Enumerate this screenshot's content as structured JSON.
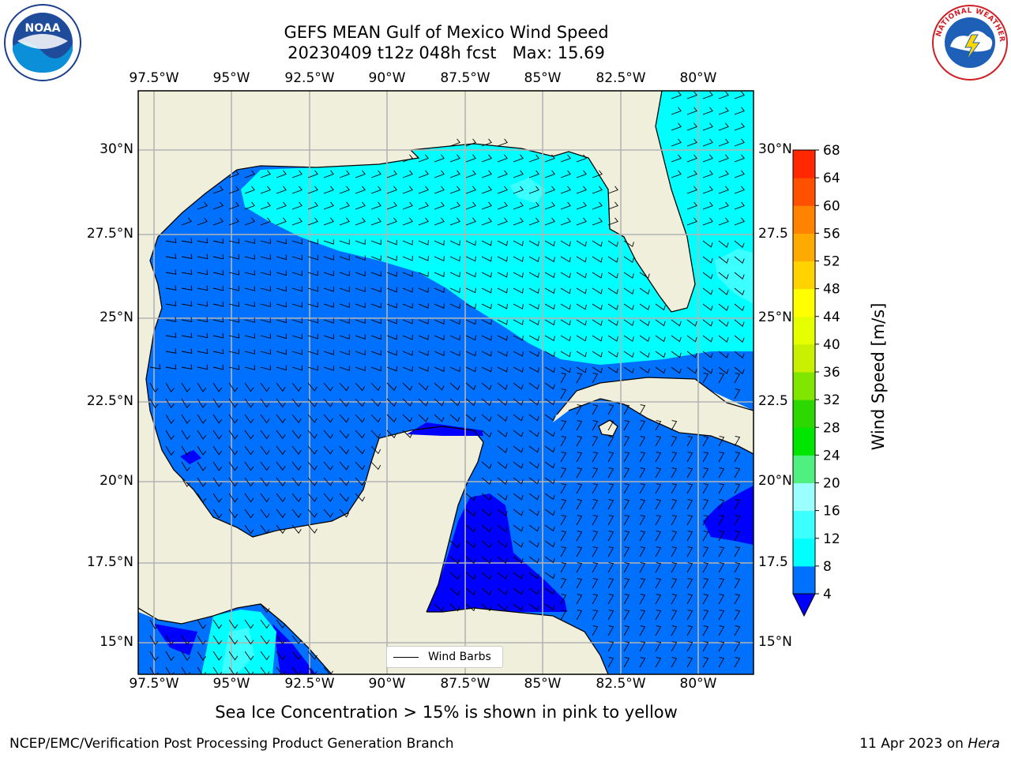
{
  "title": {
    "line1": "GEFS MEAN Gulf of Mexico Wind Speed",
    "line2": "20230409 t12z 048h fcst   Max: 15.69"
  },
  "axes": {
    "lon_labels": [
      "97.5°W",
      "95°W",
      "92.5°W",
      "90°W",
      "87.5°W",
      "85°W",
      "82.5°W",
      "80°W"
    ],
    "lat_labels_left": [
      "30°N",
      "27.5°N",
      "25°N",
      "22.5°N",
      "20°N",
      "17.5°N",
      "15°N"
    ],
    "lat_labels_right": [
      "30°N",
      "27.5",
      "25°N",
      "22.5",
      "20°N",
      "17.5",
      "15°N"
    ]
  },
  "legend": {
    "wind_barbs": "Wind Barbs"
  },
  "colorbar": {
    "label": "Wind Speed [m/s]",
    "ticks": [
      "4",
      "8",
      "12",
      "16",
      "20",
      "24",
      "28",
      "32",
      "36",
      "40",
      "44",
      "48",
      "52",
      "56",
      "60",
      "64",
      "68"
    ],
    "colors": [
      "#0070ff",
      "#00ffff",
      "#3cffff",
      "#9bffff",
      "#50f080",
      "#00e600",
      "#2cd800",
      "#80e600",
      "#c8f000",
      "#e6ff00",
      "#ffff00",
      "#ffd200",
      "#ffaa00",
      "#ff8200",
      "#ff5000",
      "#ff2800"
    ],
    "under_color": "#0000ff"
  },
  "map_colors": {
    "land": "#efefdc",
    "wind_4_8": "#0070ff",
    "wind_8_12": "#00ffff",
    "wind_12_16": "#3cffff",
    "wind_under_4": "#0000ff"
  },
  "caption": "Sea Ice Concentration > 15% is shown in pink to yellow",
  "footer": {
    "left": "NCEP/EMC/Verification Post Processing Product Generation Branch",
    "date": "11 Apr 2023 on ",
    "machine": "Hera"
  },
  "logos": {
    "noaa": "NOAA",
    "nws": "NATIONAL WEATHER SERVICE"
  }
}
